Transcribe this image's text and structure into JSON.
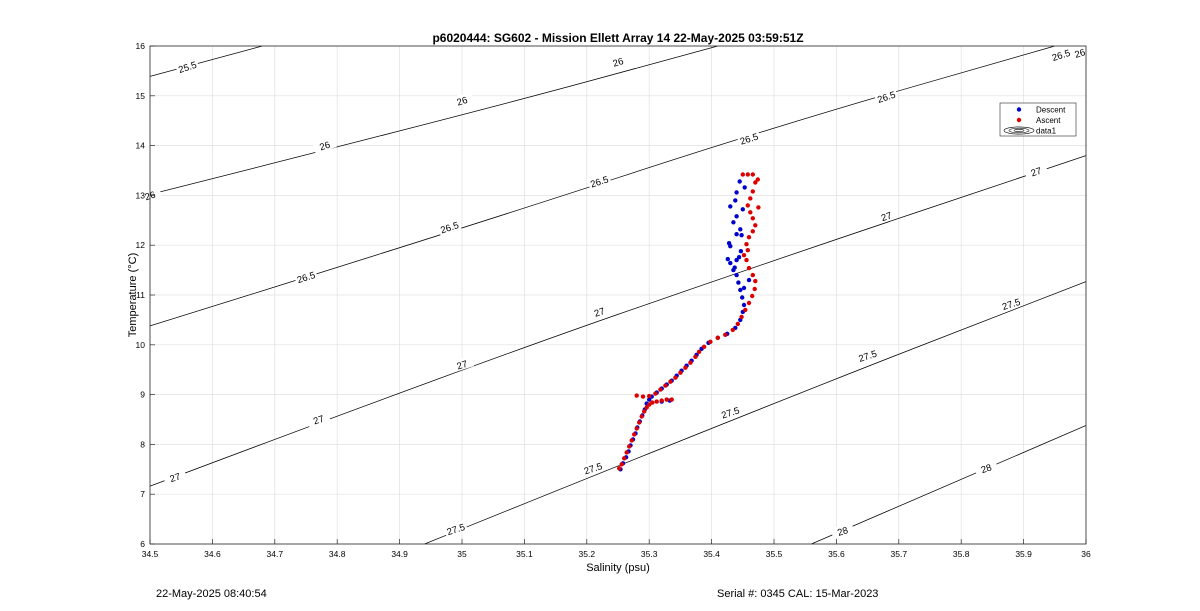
{
  "footer": {
    "timestamp": "22-May-2025 08:40:54",
    "serial_cal": "Serial #: 0345  CAL: 15-Mar-2023"
  },
  "chart_data": {
    "type": "scatter",
    "title": "p6020444: SG602 - Mission Ellett Array 14 22-May-2025 03:59:51Z",
    "xlabel": "Salinity (psu)",
    "ylabel": "Temperature (°C)",
    "xlim": [
      34.5,
      36
    ],
    "ylim": [
      6,
      16
    ],
    "xticks": [
      "34.5",
      "34.6",
      "34.7",
      "34.8",
      "34.9",
      "35",
      "35.1",
      "35.2",
      "35.3",
      "35.4",
      "35.5",
      "35.6",
      "35.7",
      "35.8",
      "35.9",
      "36"
    ],
    "yticks": [
      "6",
      "7",
      "8",
      "9",
      "10",
      "11",
      "12",
      "13",
      "14",
      "15",
      "16"
    ],
    "grid": true,
    "legend_position": "top-right",
    "legend": [
      "Descent",
      "Ascent",
      "data1"
    ],
    "colors": {
      "descent": "#0000cc",
      "ascent": "#dd0000",
      "contour": "#000000",
      "grid": "#e0e0e0"
    },
    "contours": [
      {
        "label": "25.5",
        "points": [
          [
            34.5,
            15.39
          ],
          [
            34.68,
            16.0
          ]
        ]
      },
      {
        "label": "26",
        "points": [
          [
            34.5,
            13.02
          ],
          [
            35.0,
            14.6
          ],
          [
            35.41,
            16.0
          ]
        ]
      },
      {
        "label": "26.5",
        "points": [
          [
            34.5,
            10.38
          ],
          [
            35.0,
            12.33
          ],
          [
            35.5,
            14.38
          ],
          [
            35.95,
            16.0
          ]
        ]
      },
      {
        "label": "27",
        "points": [
          [
            34.5,
            7.16
          ],
          [
            35.0,
            9.52
          ],
          [
            35.5,
            11.7
          ],
          [
            36.0,
            13.8
          ]
        ]
      },
      {
        "label": "27.5",
        "points": [
          [
            34.94,
            6.0
          ],
          [
            35.5,
            8.84
          ],
          [
            36.0,
            11.27
          ]
        ]
      },
      {
        "label": "28",
        "points": [
          [
            35.56,
            6.0
          ],
          [
            36.0,
            8.38
          ]
        ]
      }
    ],
    "contour_labels": [
      {
        "text": "25.5",
        "s": 34.56,
        "t": 15.58
      },
      {
        "text": "26",
        "s": 35.25,
        "t": 15.68
      },
      {
        "text": "26",
        "s": 35.99,
        "t": 15.86
      },
      {
        "text": "26",
        "s": 34.5,
        "t": 13.0
      },
      {
        "text": "26",
        "s": 34.78,
        "t": 14.0
      },
      {
        "text": "26",
        "s": 35.0,
        "t": 14.9
      },
      {
        "text": "26.5",
        "s": 34.75,
        "t": 11.36
      },
      {
        "text": "26.5",
        "s": 34.98,
        "t": 12.36
      },
      {
        "text": "26.5",
        "s": 35.22,
        "t": 13.28
      },
      {
        "text": "26.5",
        "s": 35.46,
        "t": 14.14
      },
      {
        "text": "26.5",
        "s": 35.68,
        "t": 14.98
      },
      {
        "text": "26.5",
        "s": 35.96,
        "t": 15.82
      },
      {
        "text": "27",
        "s": 34.54,
        "t": 7.34
      },
      {
        "text": "27",
        "s": 34.77,
        "t": 8.5
      },
      {
        "text": "27",
        "s": 35.0,
        "t": 9.6
      },
      {
        "text": "27",
        "s": 35.22,
        "t": 10.66
      },
      {
        "text": "27",
        "s": 35.68,
        "t": 12.58
      },
      {
        "text": "27",
        "s": 35.92,
        "t": 13.48
      },
      {
        "text": "27.5",
        "s": 34.99,
        "t": 6.3
      },
      {
        "text": "27.5",
        "s": 35.21,
        "t": 7.52
      },
      {
        "text": "27.5",
        "s": 35.43,
        "t": 8.64
      },
      {
        "text": "27.5",
        "s": 35.65,
        "t": 9.78
      },
      {
        "text": "27.5",
        "s": 35.88,
        "t": 10.82
      },
      {
        "text": "28",
        "s": 35.61,
        "t": 6.26
      },
      {
        "text": "28",
        "s": 35.84,
        "t": 7.52
      }
    ],
    "series": [
      {
        "name": "Descent",
        "points": [
          [
            35.254,
            7.5
          ],
          [
            35.258,
            7.62
          ],
          [
            35.263,
            7.74
          ],
          [
            35.267,
            7.86
          ],
          [
            35.27,
            7.98
          ],
          [
            35.274,
            8.1
          ],
          [
            35.278,
            8.22
          ],
          [
            35.281,
            8.34
          ],
          [
            35.285,
            8.46
          ],
          [
            35.289,
            8.58
          ],
          [
            35.293,
            8.7
          ],
          [
            35.296,
            8.82
          ],
          [
            35.3,
            8.9
          ],
          [
            35.32,
            8.86
          ],
          [
            35.333,
            8.88
          ],
          [
            35.304,
            8.96
          ],
          [
            35.312,
            9.04
          ],
          [
            35.32,
            9.12
          ],
          [
            35.328,
            9.2
          ],
          [
            35.336,
            9.28
          ],
          [
            35.344,
            9.38
          ],
          [
            35.352,
            9.48
          ],
          [
            35.36,
            9.58
          ],
          [
            35.368,
            9.68
          ],
          [
            35.376,
            9.8
          ],
          [
            35.384,
            9.92
          ],
          [
            35.395,
            10.04
          ],
          [
            35.41,
            10.14
          ],
          [
            35.425,
            10.22
          ],
          [
            35.438,
            10.34
          ],
          [
            35.446,
            10.5
          ],
          [
            35.45,
            10.66
          ],
          [
            35.452,
            10.8
          ],
          [
            35.449,
            10.95
          ],
          [
            35.446,
            11.1
          ],
          [
            35.443,
            11.25
          ],
          [
            35.44,
            11.4
          ],
          [
            35.437,
            11.55
          ],
          [
            35.44,
            11.7
          ],
          [
            35.444,
            11.76
          ],
          [
            35.426,
            11.72
          ],
          [
            35.43,
            11.64
          ],
          [
            35.435,
            11.5
          ],
          [
            35.43,
            11.98
          ],
          [
            35.428,
            12.04
          ],
          [
            35.44,
            12.22
          ],
          [
            35.446,
            12.32
          ],
          [
            35.435,
            12.46
          ],
          [
            35.44,
            12.58
          ],
          [
            35.45,
            12.72
          ],
          [
            35.43,
            12.78
          ],
          [
            35.438,
            12.9
          ],
          [
            35.44,
            13.06
          ],
          [
            35.453,
            13.16
          ],
          [
            35.445,
            13.28
          ],
          [
            35.448,
            12.2
          ],
          [
            35.46,
            11.3
          ],
          [
            35.452,
            11.14
          ],
          [
            35.447,
            11.88
          ]
        ]
      },
      {
        "name": "Ascent",
        "points": [
          [
            35.252,
            7.52
          ],
          [
            35.256,
            7.6
          ],
          [
            35.26,
            7.72
          ],
          [
            35.264,
            7.84
          ],
          [
            35.268,
            7.96
          ],
          [
            35.272,
            8.08
          ],
          [
            35.276,
            8.2
          ],
          [
            35.28,
            8.32
          ],
          [
            35.284,
            8.44
          ],
          [
            35.288,
            8.56
          ],
          [
            35.292,
            8.66
          ],
          [
            35.296,
            8.74
          ],
          [
            35.3,
            8.8
          ],
          [
            35.305,
            8.84
          ],
          [
            35.312,
            8.86
          ],
          [
            35.32,
            8.88
          ],
          [
            35.328,
            8.9
          ],
          [
            35.336,
            8.9
          ],
          [
            35.28,
            8.98
          ],
          [
            35.29,
            8.96
          ],
          [
            35.3,
            8.97
          ],
          [
            35.31,
            9.02
          ],
          [
            35.318,
            9.1
          ],
          [
            35.326,
            9.18
          ],
          [
            35.334,
            9.26
          ],
          [
            35.342,
            9.34
          ],
          [
            35.35,
            9.44
          ],
          [
            35.358,
            9.54
          ],
          [
            35.366,
            9.64
          ],
          [
            35.374,
            9.76
          ],
          [
            35.38,
            9.86
          ],
          [
            35.388,
            9.96
          ],
          [
            35.398,
            10.06
          ],
          [
            35.41,
            10.14
          ],
          [
            35.422,
            10.2
          ],
          [
            35.434,
            10.3
          ],
          [
            35.442,
            10.42
          ],
          [
            35.448,
            10.56
          ],
          [
            35.454,
            10.7
          ],
          [
            35.46,
            10.84
          ],
          [
            35.465,
            10.98
          ],
          [
            35.469,
            11.12
          ],
          [
            35.47,
            11.28
          ],
          [
            35.466,
            11.4
          ],
          [
            35.46,
            11.54
          ],
          [
            35.456,
            11.7
          ],
          [
            35.452,
            11.8
          ],
          [
            35.458,
            11.9
          ],
          [
            35.456,
            12.02
          ],
          [
            35.46,
            12.16
          ],
          [
            35.466,
            12.28
          ],
          [
            35.47,
            12.4
          ],
          [
            35.466,
            12.54
          ],
          [
            35.462,
            12.66
          ],
          [
            35.458,
            12.8
          ],
          [
            35.462,
            12.94
          ],
          [
            35.466,
            13.08
          ],
          [
            35.47,
            13.26
          ],
          [
            35.466,
            13.42
          ],
          [
            35.458,
            13.42
          ],
          [
            35.45,
            13.42
          ],
          [
            35.475,
            12.76
          ],
          [
            35.474,
            13.32
          ]
        ]
      }
    ]
  }
}
